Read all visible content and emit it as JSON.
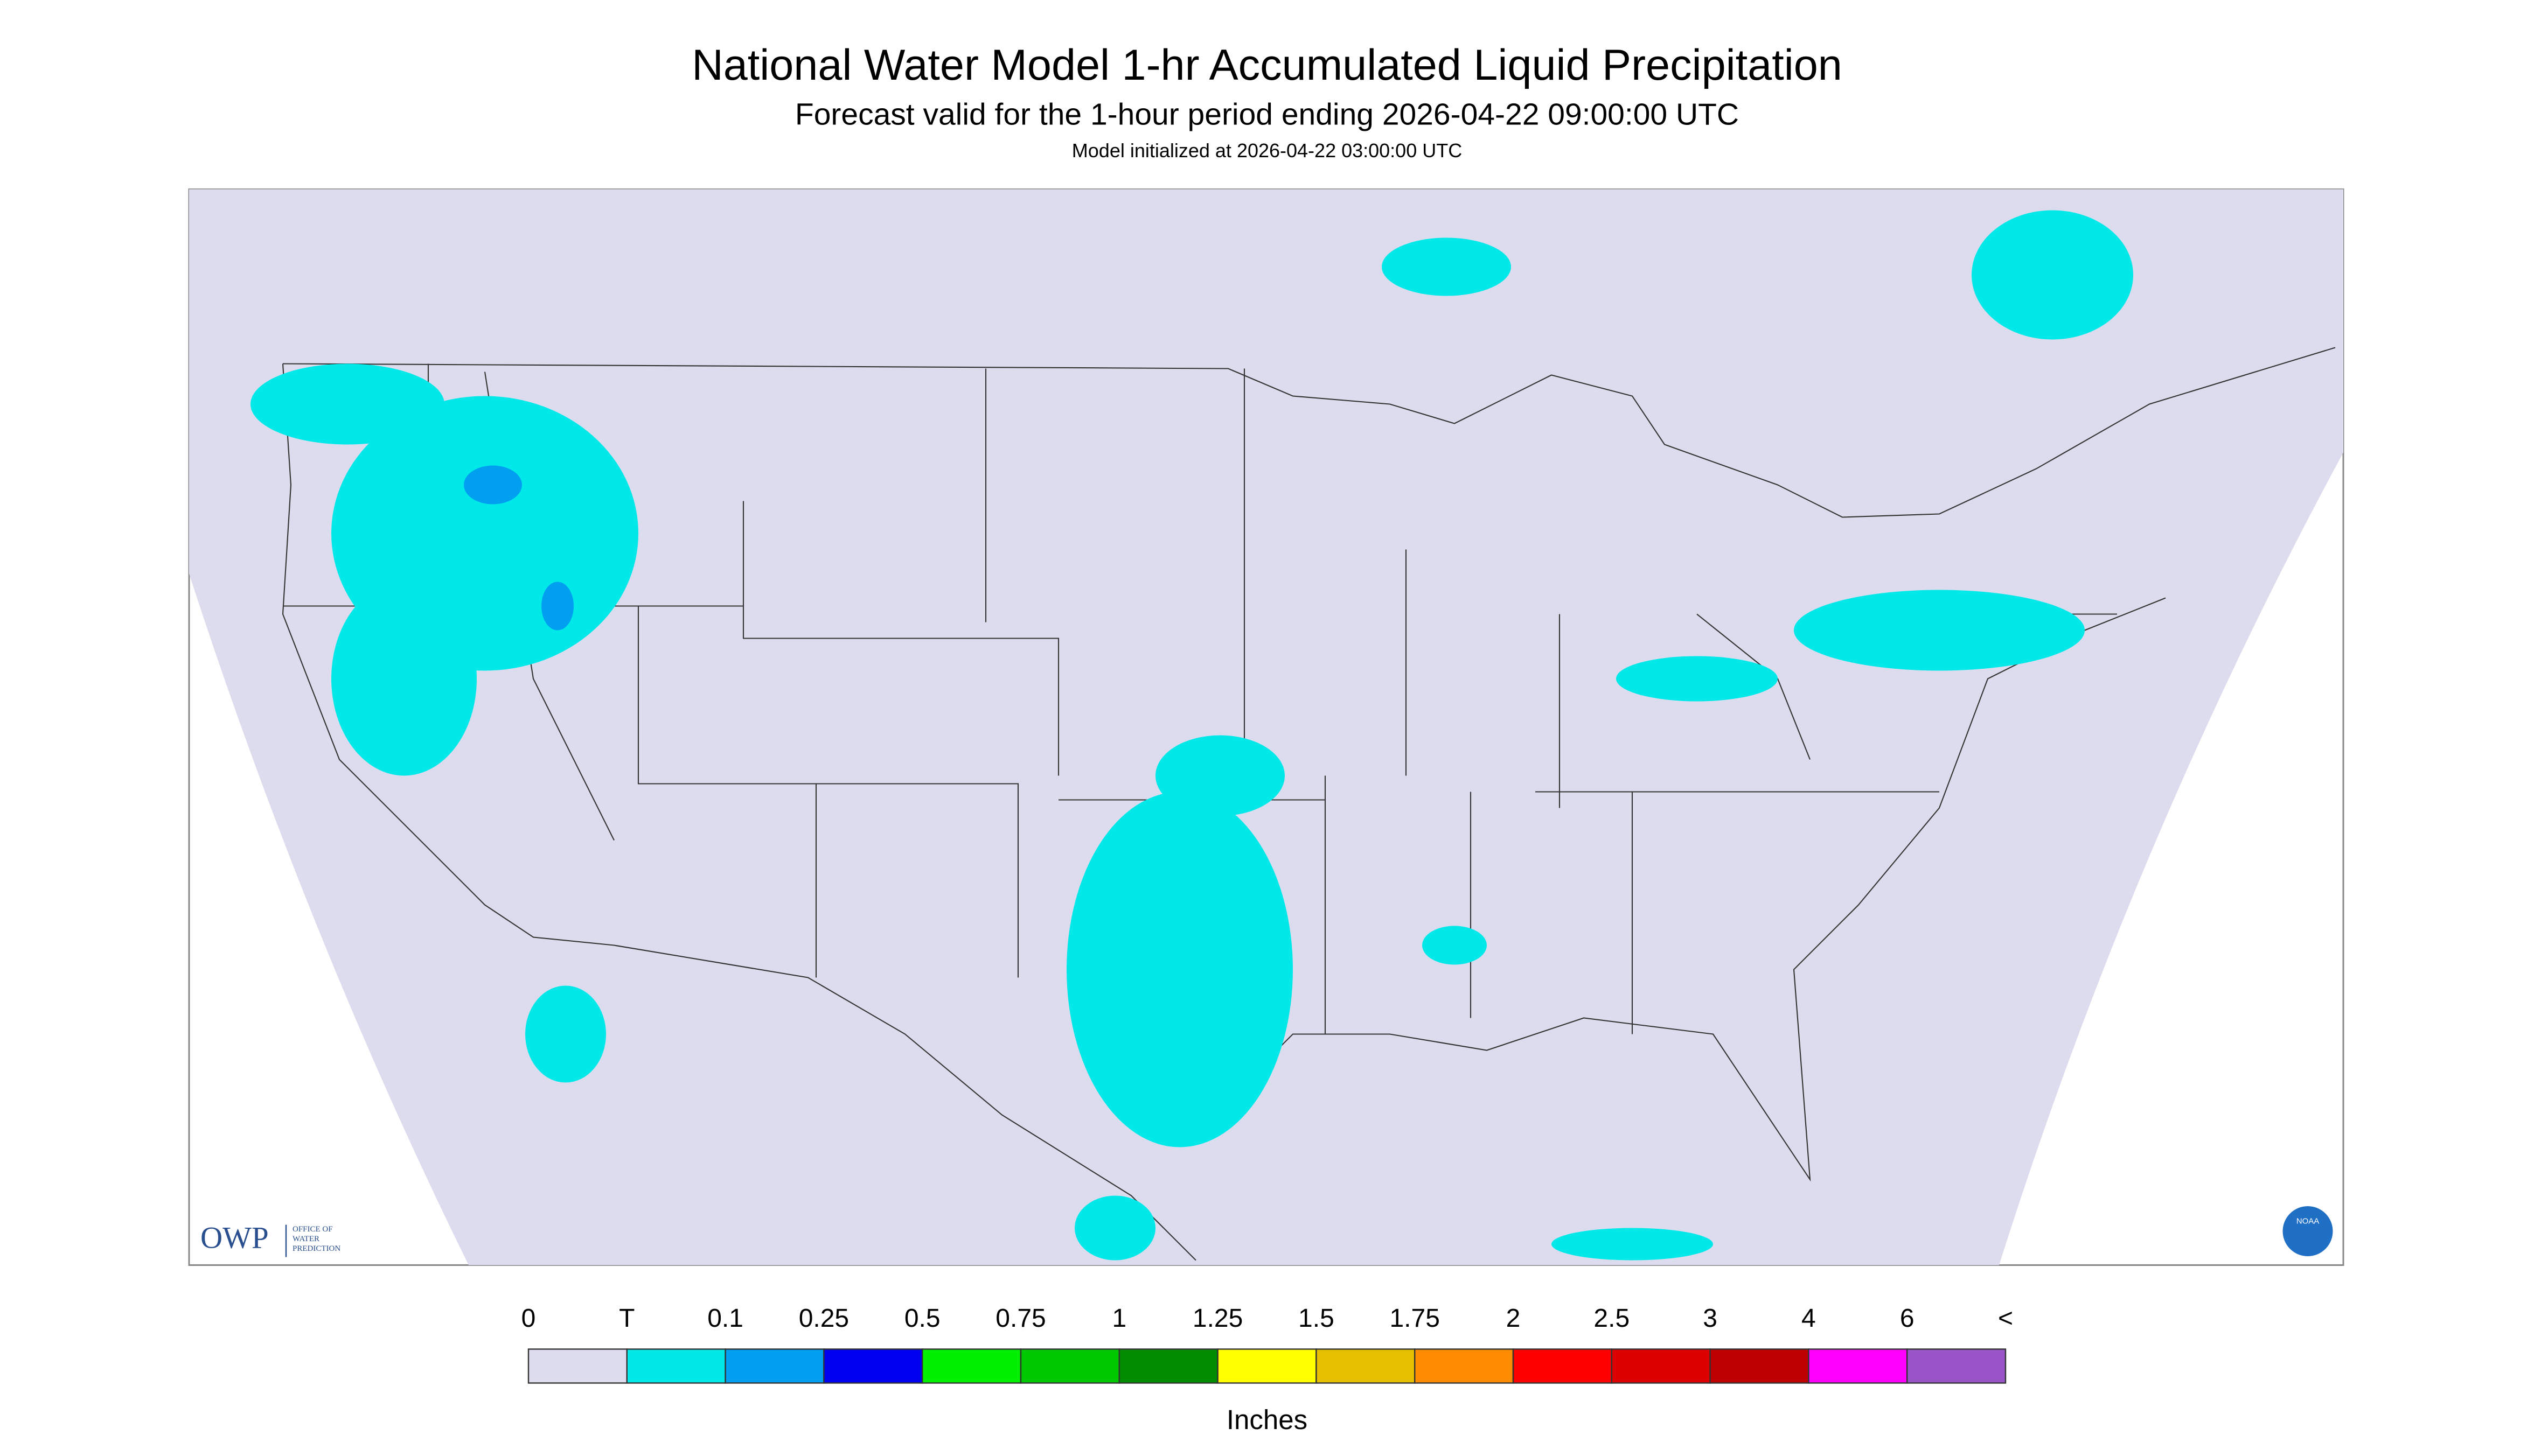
{
  "header": {
    "title": "National Water Model 1-hr Accumulated Liquid Precipitation",
    "subtitle": "Forecast valid for the 1-hour period ending 2026-04-22 09:00:00 UTC",
    "initialized": "Model initialized at 2026-04-22 03:00:00 UTC"
  },
  "legend": {
    "labels": [
      "0",
      "T",
      "0.1",
      "0.25",
      "0.5",
      "0.75",
      "1",
      "1.25",
      "1.5",
      "1.75",
      "2",
      "2.5",
      "3",
      "4",
      "6",
      "<"
    ],
    "colors": [
      "#dcdcee",
      "#00e8e8",
      "#009ff0",
      "#0000f0",
      "#00f000",
      "#00c800",
      "#008c00",
      "#ffff00",
      "#e6c000",
      "#ff8c00",
      "#ff0000",
      "#dc0000",
      "#be0000",
      "#ff00ff",
      "#9955c8"
    ],
    "unit": "Inches"
  },
  "logo": {
    "owp": "OWP",
    "office": [
      "OFFICE OF",
      "WATER",
      "PREDICTION"
    ],
    "noaa": "NOAA"
  }
}
